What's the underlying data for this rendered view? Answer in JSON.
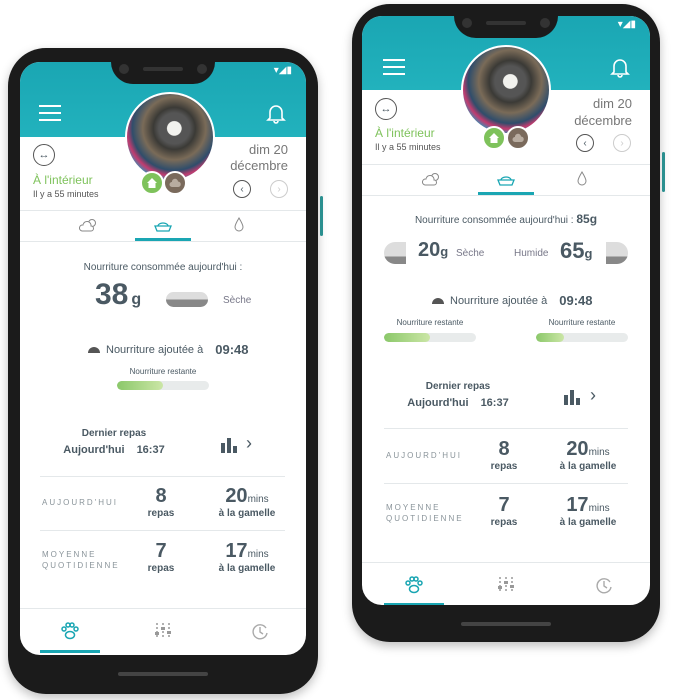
{
  "colors": {
    "header": "#1aa6b3",
    "indoor_green": "#7ec25b",
    "progress_green": "#8bc86a",
    "accent": "#1aa6b3"
  },
  "phones": [
    {
      "status_icons": [
        "wifi-icon",
        "signal-icon",
        "battery-icon"
      ],
      "location": {
        "label": "À l'intérieur",
        "since": "Il y a 55 minutes"
      },
      "date": {
        "line1": "dim 20",
        "line2": "décembre"
      },
      "tabs": [
        {
          "icon": "weather-icon"
        },
        {
          "icon": "bowl-icon",
          "active": true
        },
        {
          "icon": "water-drop-icon"
        }
      ],
      "consumed": {
        "label": "Nourriture consommée aujourd'hui :",
        "value": "38",
        "unit": "g",
        "type": "Sèche"
      },
      "added": {
        "label": "Nourriture ajoutée à",
        "time": "09:48"
      },
      "remaining": [
        {
          "label": "Nourriture restante",
          "percent": 50
        }
      ],
      "last_meal": {
        "label": "Dernier repas",
        "day": "Aujourd'hui",
        "time": "16:37"
      },
      "stats": [
        {
          "label_1": "AUJOURD'HUI",
          "label_2": "",
          "meals": "8",
          "meals_unit": "repas",
          "mins": "20",
          "mins_unit": "mins",
          "mins_label": "à la gamelle"
        },
        {
          "label_1": "MOYENNE",
          "label_2": "QUOTIDIENNE",
          "meals": "7",
          "meals_unit": "repas",
          "mins": "17",
          "mins_unit": "mins",
          "mins_label": "à la gamelle"
        }
      ],
      "bottom_nav": [
        {
          "icon": "paw-icon",
          "active": true
        },
        {
          "icon": "sliders-icon"
        },
        {
          "icon": "history-icon"
        }
      ]
    },
    {
      "status_icons": [
        "wifi-icon",
        "signal-icon",
        "battery-icon"
      ],
      "location": {
        "label": "À l'intérieur",
        "since": "Il y a 55 minutes"
      },
      "date": {
        "line1": "dim 20",
        "line2": "décembre"
      },
      "tabs": [
        {
          "icon": "weather-icon"
        },
        {
          "icon": "bowl-icon",
          "active": true
        },
        {
          "icon": "water-drop-icon"
        }
      ],
      "consumed": {
        "label": "Nourriture consommée aujourd'hui :",
        "total": "85g",
        "dry_value": "20",
        "dry_unit": "g",
        "dry_label": "Sèche",
        "wet_label": "Humide",
        "wet_value": "65",
        "wet_unit": "g"
      },
      "added": {
        "label": "Nourriture ajoutée à",
        "time": "09:48"
      },
      "remaining": [
        {
          "label": "Nourriture restante",
          "percent": 50
        },
        {
          "label": "Nourriture restante",
          "percent": 30
        }
      ],
      "last_meal": {
        "label": "Dernier repas",
        "day": "Aujourd'hui",
        "time": "16:37"
      },
      "stats": [
        {
          "label_1": "AUJOURD'HUI",
          "label_2": "",
          "meals": "8",
          "meals_unit": "repas",
          "mins": "20",
          "mins_unit": "mins",
          "mins_label": "à la gamelle"
        },
        {
          "label_1": "MOYENNE",
          "label_2": "QUOTIDIENNE",
          "meals": "7",
          "meals_unit": "repas",
          "mins": "17",
          "mins_unit": "mins",
          "mins_label": "à la gamelle"
        }
      ],
      "bottom_nav": [
        {
          "icon": "paw-icon",
          "active": true
        },
        {
          "icon": "sliders-icon"
        },
        {
          "icon": "history-icon"
        }
      ]
    }
  ]
}
